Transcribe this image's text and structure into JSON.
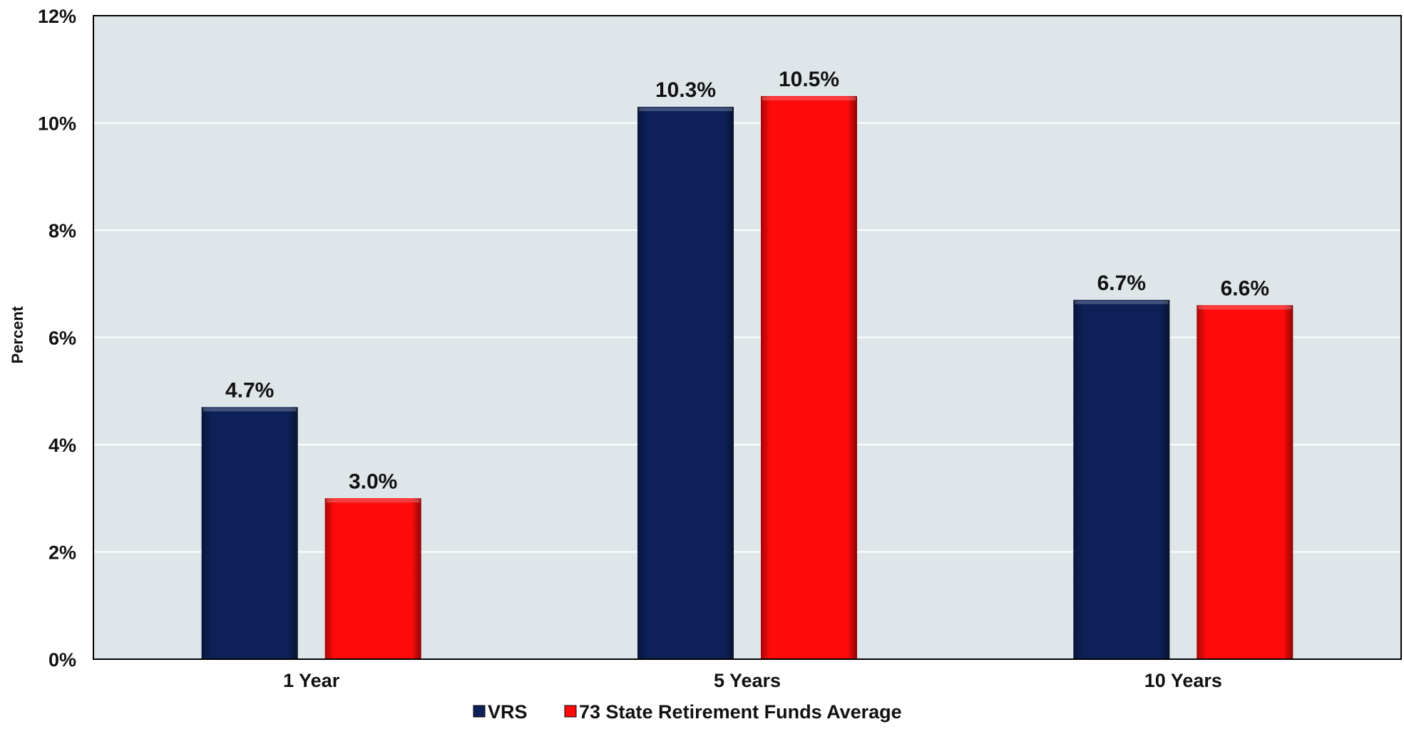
{
  "chart_data": {
    "type": "bar",
    "categories": [
      "1 Year",
      "5 Years",
      "10 Years"
    ],
    "series": [
      {
        "name": "VRS",
        "values": [
          4.7,
          10.3,
          6.7
        ],
        "color": "#0d2158"
      },
      {
        "name": "73 State Retirement Funds Average",
        "values": [
          3.0,
          10.5,
          6.6
        ],
        "color": "#ff0a0a"
      }
    ],
    "data_labels": [
      [
        "4.7%",
        "10.3%",
        "6.7%"
      ],
      [
        "3.0%",
        "10.5%",
        "6.6%"
      ]
    ],
    "title": "",
    "xlabel": "",
    "ylabel": "Percent",
    "ylim": [
      0,
      12
    ],
    "yticks": [
      0,
      2,
      4,
      6,
      8,
      10,
      12
    ],
    "ytick_labels": [
      "0%",
      "2%",
      "4%",
      "6%",
      "8%",
      "10%",
      "12%"
    ],
    "grid": true,
    "legend_position": "bottom-center",
    "plot_background": "#dfe6e9"
  }
}
